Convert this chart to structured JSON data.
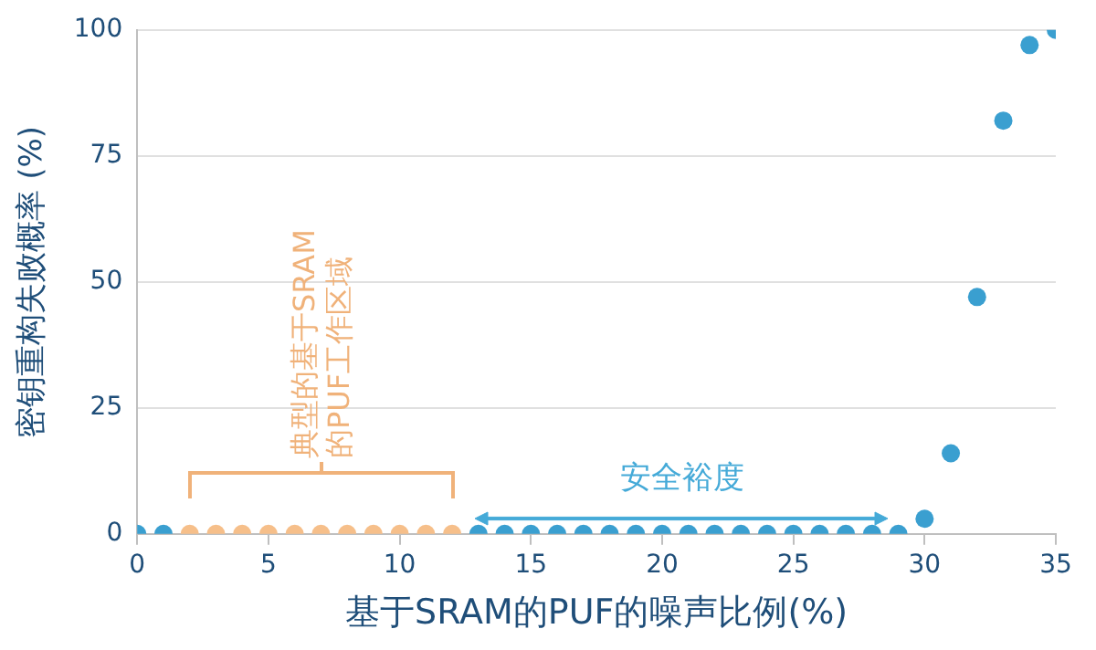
{
  "chart_data": {
    "type": "scatter",
    "xlabel": "基于SRAM的PUF的噪声比例(%)",
    "ylabel": "密钥重构失败概率 (%)",
    "series": [
      {
        "color": "#3a9fd0",
        "x": [
          0,
          1,
          13,
          14,
          15,
          16,
          17,
          18,
          19,
          20,
          21,
          22,
          23,
          24,
          25,
          26,
          27,
          28,
          29,
          30,
          31,
          32,
          33,
          34,
          35
        ],
        "values": [
          0,
          0,
          0,
          0,
          0,
          0,
          0,
          0,
          0,
          0,
          0,
          0,
          0,
          0,
          0,
          0,
          0,
          0,
          0,
          3,
          16,
          47,
          82,
          97,
          100
        ]
      },
      {
        "color": "#f6bf8a",
        "x": [
          2,
          3,
          4,
          5,
          6,
          7,
          8,
          9,
          10,
          11,
          12
        ],
        "values": [
          0,
          0,
          0,
          0,
          0,
          0,
          0,
          0,
          0,
          0,
          0
        ]
      }
    ],
    "annotations": [
      "典型的基于SRAM的PUF工作区域",
      "安全裕度"
    ],
    "xlim": [
      0,
      35
    ],
    "xticks": [
      0,
      5,
      10,
      15,
      20,
      25,
      30,
      35
    ],
    "ylim": [
      0,
      100
    ],
    "yticks": [
      0,
      25,
      50,
      75,
      100
    ],
    "grid": "y",
    "legend": false,
    "marker": "circle"
  }
}
